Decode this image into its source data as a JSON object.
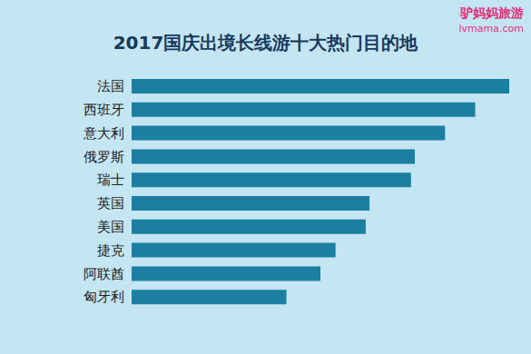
{
  "chart_data": {
    "type": "bar",
    "orientation": "horizontal",
    "title": "2017国庆出境长线游十大热门目的地",
    "annotations": [
      "驴妈妈旅游",
      "lvmama.com"
    ],
    "categories": [
      "法国",
      "西班牙",
      "意大利",
      "俄罗斯",
      "瑞士",
      "英国",
      "美国",
      "捷克",
      "阿联酋",
      "匈牙利"
    ],
    "values": [
      100,
      91,
      83,
      75,
      74,
      63,
      62,
      54,
      50,
      41
    ],
    "color": "#1a7fa1",
    "xlim": [
      0,
      100
    ],
    "grid": false,
    "tick_labels": "y"
  }
}
